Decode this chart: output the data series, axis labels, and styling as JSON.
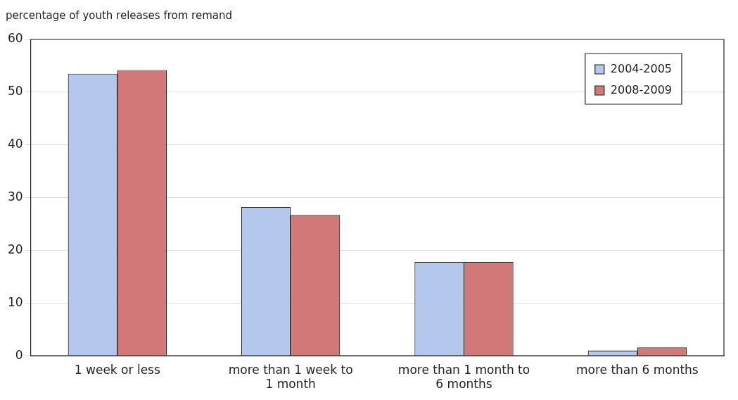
{
  "chart_data": {
    "type": "bar",
    "ylabel": "percentage of youth releases from remand",
    "categories": [
      "1 week or less",
      "more than 1 week to 1 month",
      "more than 1 month to 6 months",
      "more than 6 months"
    ],
    "series": [
      {
        "name": "2004-2005",
        "color": "#b4c7ec",
        "values": [
          53.5,
          28.2,
          17.8,
          1.0
        ]
      },
      {
        "name": "2008-2009",
        "color": "#d27878",
        "values": [
          54.2,
          26.7,
          17.8,
          1.6
        ]
      }
    ],
    "ylim": [
      0,
      60
    ],
    "yticks": [
      0,
      10,
      20,
      30,
      40,
      50,
      60
    ],
    "grid": "y",
    "legend": "top right"
  }
}
